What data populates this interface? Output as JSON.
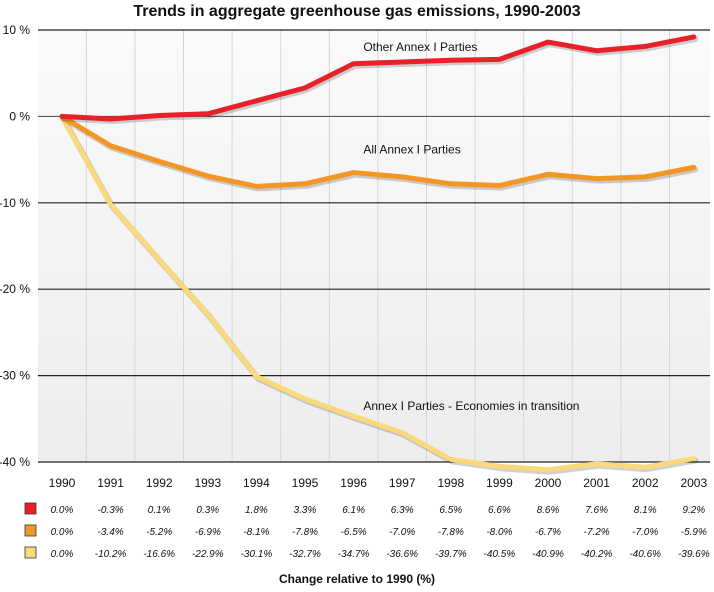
{
  "chart_data": {
    "type": "line",
    "title": "Trends in aggregate greenhouse gas emissions, 1990-2003",
    "xlabel": "Change relative to 1990 (%)",
    "ylabel": "",
    "ylim": [
      -40,
      10
    ],
    "y_ticks": [
      10,
      0,
      -10,
      -20,
      -30,
      -40
    ],
    "y_tick_labels": [
      "10 %",
      "0 %",
      "-10 %",
      "-20 %",
      "-30 %",
      "-40 %"
    ],
    "grid": true,
    "x": [
      "1990",
      "1991",
      "1992",
      "1993",
      "1994",
      "1995",
      "1996",
      "1997",
      "1998",
      "1999",
      "2000",
      "2001",
      "2002",
      "2003"
    ],
    "series": [
      {
        "name": "Other Annex I Parties",
        "color": "#e8202a",
        "values": [
          0.0,
          -0.3,
          0.1,
          0.3,
          1.8,
          3.3,
          6.1,
          6.3,
          6.5,
          6.6,
          8.6,
          7.6,
          8.1,
          9.2
        ],
        "table_labels": [
          "0.0%",
          "-0.3%",
          "0.1%",
          "0.3%",
          "1.8%",
          "3.3%",
          "6.1%",
          "6.3%",
          "6.5%",
          "6.6%",
          "8.6%",
          "7.6%",
          "8.1%",
          "9.2%"
        ]
      },
      {
        "name": "All Annex I Parties",
        "color": "#f39623",
        "values": [
          0.0,
          -3.4,
          -5.2,
          -6.9,
          -8.1,
          -7.8,
          -6.5,
          -7.0,
          -7.8,
          -8.0,
          -6.7,
          -7.2,
          -7.0,
          -5.9
        ],
        "table_labels": [
          "0.0%",
          "-3.4%",
          "-5.2%",
          "-6.9%",
          "-8.1%",
          "-7.8%",
          "-6.5%",
          "-7.0%",
          "-7.8%",
          "-8.0%",
          "-6.7%",
          "-7.2%",
          "-7.0%",
          "-5.9%"
        ]
      },
      {
        "name": "Annex I Parties - Economies in transition",
        "color": "#f9d97a",
        "values": [
          0.0,
          -10.2,
          -16.6,
          -22.9,
          -30.1,
          -32.7,
          -34.7,
          -36.6,
          -39.7,
          -40.5,
          -40.9,
          -40.2,
          -40.6,
          -39.6
        ],
        "table_labels": [
          "0.0%",
          "-10.2%",
          "-16.6%",
          "-22.9%",
          "-30.1%",
          "-32.7%",
          "-34.7%",
          "-36.6%",
          "-39.7%",
          "-40.5%",
          "-40.9%",
          "-40.2%",
          "-40.6%",
          "-39.6%"
        ]
      }
    ]
  }
}
